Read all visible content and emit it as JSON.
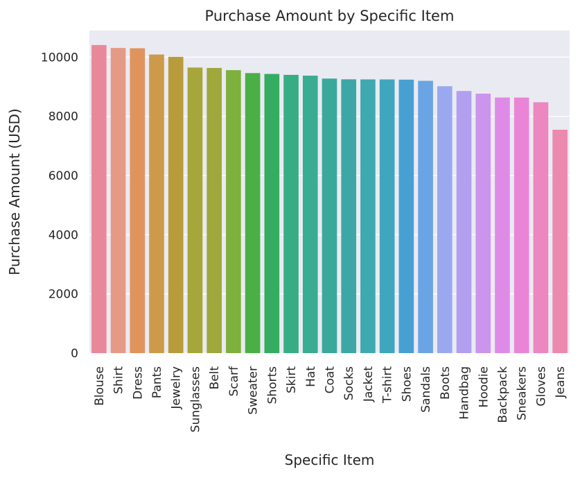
{
  "chart_data": {
    "type": "bar",
    "title": "Purchase Amount by Specific Item",
    "xlabel": "Specific Item",
    "ylabel": "Purchase Amount (USD)",
    "categories": [
      "Blouse",
      "Shirt",
      "Dress",
      "Pants",
      "Jewelry",
      "Sunglasses",
      "Belt",
      "Scarf",
      "Sweater",
      "Shorts",
      "Skirt",
      "Hat",
      "Coat",
      "Socks",
      "Jacket",
      "T-shirt",
      "Shoes",
      "Sandals",
      "Boots",
      "Handbag",
      "Hoodie",
      "Backpack",
      "Sneakers",
      "Gloves",
      "Jeans"
    ],
    "values": [
      10410,
      10311,
      10301,
      10090,
      10010,
      9649,
      9635,
      9561,
      9462,
      9433,
      9402,
      9375,
      9277,
      9252,
      9249,
      9248,
      9240,
      9200,
      9018,
      8857,
      8767,
      8636,
      8635,
      8477,
      7548
    ],
    "colors": [
      "#e8899a",
      "#e59a86",
      "#e1935c",
      "#cc9a4a",
      "#b89c3b",
      "#a6a63a",
      "#9ea83b",
      "#7db03c",
      "#4aaf45",
      "#34ad62",
      "#37ad84",
      "#39ac92",
      "#3aa99b",
      "#3ca7a5",
      "#3eaab0",
      "#40a6bd",
      "#46a0d2",
      "#6aa4e4",
      "#9aa9ef",
      "#b39ff0",
      "#cb94ed",
      "#e08ae8",
      "#ea84d7",
      "#ec87c0",
      "#ec89ae"
    ],
    "yticks": [
      "0",
      "2000",
      "4000",
      "6000",
      "8000",
      "10000"
    ],
    "ylim": [
      0,
      10900
    ],
    "grid": true,
    "background": "#eaeaf2"
  }
}
